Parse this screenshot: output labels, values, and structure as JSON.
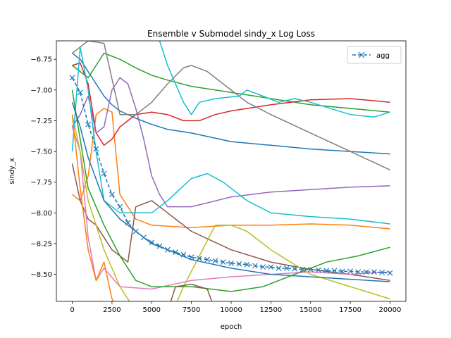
{
  "chart_data": {
    "type": "line",
    "title": "Ensemble v Submodel sindy_x Log Loss",
    "xlabel": "epoch",
    "ylabel": "sindy_x",
    "xlim": [
      -1000,
      21000
    ],
    "ylim": [
      -8.72,
      -6.6
    ],
    "xticks": [
      0,
      2500,
      5000,
      7500,
      10000,
      12500,
      15000,
      17500,
      20000
    ],
    "yticks": [
      -8.5,
      -8.25,
      -8.0,
      -7.75,
      -7.5,
      -7.25,
      -7.0,
      -6.75
    ],
    "grid": false,
    "legend": {
      "placement": "top-right",
      "entries": [
        "agg"
      ]
    },
    "aggregate": {
      "name": "agg",
      "color": "#1f77b4",
      "marker": "x",
      "linestyle": "dashed",
      "points": [
        [
          0,
          -6.9
        ],
        [
          500,
          -7.02
        ],
        [
          1000,
          -7.28
        ],
        [
          1500,
          -7.48
        ],
        [
          2000,
          -7.68
        ],
        [
          2500,
          -7.85
        ],
        [
          3000,
          -7.95
        ],
        [
          3500,
          -8.08
        ],
        [
          4000,
          -8.15
        ],
        [
          4500,
          -8.2
        ],
        [
          5000,
          -8.24
        ],
        [
          5500,
          -8.27
        ],
        [
          6000,
          -8.3
        ],
        [
          6500,
          -8.32
        ],
        [
          7000,
          -8.34
        ],
        [
          7500,
          -8.36
        ],
        [
          8000,
          -8.37
        ],
        [
          8500,
          -8.38
        ],
        [
          9000,
          -8.39
        ],
        [
          9500,
          -8.4
        ],
        [
          10000,
          -8.41
        ],
        [
          10500,
          -8.415
        ],
        [
          11000,
          -8.42
        ],
        [
          11500,
          -8.43
        ],
        [
          12000,
          -8.44
        ],
        [
          12500,
          -8.44
        ],
        [
          13000,
          -8.45
        ],
        [
          13500,
          -8.45
        ],
        [
          14000,
          -8.455
        ],
        [
          14500,
          -8.46
        ],
        [
          15000,
          -8.46
        ],
        [
          15500,
          -8.465
        ],
        [
          16000,
          -8.47
        ],
        [
          16500,
          -8.47
        ],
        [
          17000,
          -8.475
        ],
        [
          17500,
          -8.475
        ],
        [
          18000,
          -8.48
        ],
        [
          18500,
          -8.48
        ],
        [
          19000,
          -8.48
        ],
        [
          19500,
          -8.485
        ],
        [
          20000,
          -8.49
        ]
      ]
    },
    "submodels": [
      {
        "color": "#1f77b4",
        "points": [
          [
            0,
            -6.7
          ],
          [
            500,
            -6.75
          ],
          [
            1000,
            -6.85
          ],
          [
            1500,
            -6.95
          ],
          [
            2000,
            -7.05
          ],
          [
            2500,
            -7.12
          ],
          [
            3000,
            -7.17
          ],
          [
            4000,
            -7.23
          ],
          [
            5000,
            -7.28
          ],
          [
            6000,
            -7.32
          ],
          [
            7500,
            -7.35
          ],
          [
            10000,
            -7.42
          ],
          [
            12500,
            -7.45
          ],
          [
            15000,
            -7.48
          ],
          [
            17500,
            -7.5
          ],
          [
            20000,
            -7.52
          ]
        ]
      },
      {
        "color": "#ff7f0e",
        "points": [
          [
            0,
            -7.85
          ],
          [
            500,
            -7.9
          ],
          [
            1000,
            -7.7
          ],
          [
            1500,
            -7.2
          ],
          [
            2000,
            -7.15
          ],
          [
            2500,
            -7.18
          ],
          [
            3000,
            -7.85
          ],
          [
            4000,
            -8.05
          ],
          [
            5000,
            -8.1
          ],
          [
            7500,
            -8.12
          ],
          [
            10000,
            -8.1
          ],
          [
            12500,
            -8.1
          ],
          [
            15000,
            -8.09
          ],
          [
            17500,
            -8.1
          ],
          [
            20000,
            -8.13
          ]
        ]
      },
      {
        "color": "#2ca02c",
        "points": [
          [
            0,
            -6.8
          ],
          [
            500,
            -6.85
          ],
          [
            1000,
            -6.9
          ],
          [
            2000,
            -6.7
          ],
          [
            3000,
            -6.75
          ],
          [
            4000,
            -6.82
          ],
          [
            5000,
            -6.88
          ],
          [
            6000,
            -6.92
          ],
          [
            7500,
            -6.97
          ],
          [
            10000,
            -7.02
          ],
          [
            12500,
            -7.07
          ],
          [
            15000,
            -7.12
          ],
          [
            17500,
            -7.15
          ],
          [
            20000,
            -7.18
          ]
        ]
      },
      {
        "color": "#d62728",
        "points": [
          [
            0,
            -6.8
          ],
          [
            500,
            -6.78
          ],
          [
            1000,
            -6.95
          ],
          [
            1500,
            -7.35
          ],
          [
            2000,
            -7.45
          ],
          [
            2500,
            -7.4
          ],
          [
            3000,
            -7.3
          ],
          [
            3500,
            -7.25
          ],
          [
            4000,
            -7.2
          ],
          [
            5000,
            -7.18
          ],
          [
            6000,
            -7.2
          ],
          [
            7000,
            -7.25
          ],
          [
            8000,
            -7.25
          ],
          [
            9000,
            -7.2
          ],
          [
            10000,
            -7.17
          ],
          [
            12500,
            -7.12
          ],
          [
            15000,
            -7.08
          ],
          [
            17500,
            -7.07
          ],
          [
            20000,
            -7.1
          ]
        ]
      },
      {
        "color": "#9467bd",
        "points": [
          [
            0,
            -7.3
          ],
          [
            500,
            -7.2
          ],
          [
            1000,
            -7.05
          ],
          [
            1500,
            -7.35
          ],
          [
            2000,
            -7.3
          ],
          [
            2500,
            -7.0
          ],
          [
            3000,
            -6.9
          ],
          [
            3500,
            -6.95
          ],
          [
            4000,
            -7.15
          ],
          [
            4500,
            -7.4
          ],
          [
            5000,
            -7.7
          ],
          [
            5500,
            -7.85
          ],
          [
            6000,
            -7.95
          ],
          [
            7500,
            -7.95
          ],
          [
            10000,
            -7.87
          ],
          [
            12500,
            -7.83
          ],
          [
            15000,
            -7.81
          ],
          [
            17500,
            -7.79
          ],
          [
            20000,
            -7.78
          ]
        ]
      },
      {
        "color": "#8c564b",
        "points": [
          [
            0,
            -7.6
          ],
          [
            500,
            -7.9
          ],
          [
            1000,
            -8.05
          ],
          [
            1500,
            -8.1
          ],
          [
            2000,
            -8.2
          ],
          [
            2500,
            -8.3
          ],
          [
            3000,
            -8.35
          ],
          [
            3500,
            -8.4
          ],
          [
            4000,
            -7.95
          ],
          [
            5000,
            -7.9
          ],
          [
            6000,
            -8.0
          ],
          [
            7500,
            -8.15
          ],
          [
            10000,
            -8.3
          ],
          [
            12500,
            -8.4
          ],
          [
            15000,
            -8.46
          ],
          [
            17500,
            -8.5
          ],
          [
            20000,
            -8.55
          ]
        ]
      },
      {
        "color": "#e377c2",
        "points": [
          [
            0,
            -7.3
          ],
          [
            500,
            -7.5
          ],
          [
            1000,
            -8.2
          ],
          [
            1500,
            -8.55
          ],
          [
            2000,
            -8.45
          ],
          [
            3000,
            -8.6
          ],
          [
            5000,
            -8.62
          ],
          [
            7500,
            -8.55
          ],
          [
            10000,
            -8.52
          ],
          [
            12500,
            -8.5
          ],
          [
            15000,
            -8.48
          ],
          [
            17500,
            -8.5
          ],
          [
            20000,
            -8.48
          ]
        ]
      },
      {
        "color": "#7f7f7f",
        "points": [
          [
            0,
            -6.7
          ],
          [
            1000,
            -6.6
          ],
          [
            2000,
            -6.62
          ],
          [
            3000,
            -7.2
          ],
          [
            4000,
            -7.2
          ],
          [
            5000,
            -7.1
          ],
          [
            6000,
            -6.95
          ],
          [
            7000,
            -6.82
          ],
          [
            7500,
            -6.8
          ],
          [
            8500,
            -6.85
          ],
          [
            9500,
            -6.95
          ],
          [
            11000,
            -7.1
          ],
          [
            12500,
            -7.2
          ],
          [
            15000,
            -7.35
          ],
          [
            17500,
            -7.5
          ],
          [
            20000,
            -7.65
          ]
        ]
      },
      {
        "color": "#bcbd22",
        "points": [
          [
            0,
            -7.2
          ],
          [
            500,
            -7.5
          ],
          [
            1000,
            -7.9
          ],
          [
            2000,
            -8.3
          ],
          [
            3000,
            -8.6
          ],
          [
            4000,
            -8.8
          ],
          [
            6000,
            -8.9
          ],
          [
            7000,
            -8.6
          ],
          [
            8000,
            -8.35
          ],
          [
            9000,
            -8.1
          ],
          [
            10000,
            -8.1
          ],
          [
            11000,
            -8.15
          ],
          [
            12500,
            -8.3
          ],
          [
            15000,
            -8.5
          ],
          [
            17500,
            -8.6
          ],
          [
            20000,
            -8.7
          ]
        ]
      },
      {
        "color": "#17becf",
        "points": [
          [
            0,
            -7.5
          ],
          [
            500,
            -6.65
          ],
          [
            1000,
            -7.0
          ],
          [
            1500,
            -7.5
          ],
          [
            2000,
            -7.9
          ],
          [
            3000,
            -8.0
          ],
          [
            4000,
            -8.0
          ],
          [
            5000,
            -8.0
          ],
          [
            6000,
            -7.9
          ],
          [
            7500,
            -7.72
          ],
          [
            8500,
            -7.68
          ],
          [
            9500,
            -7.75
          ],
          [
            11000,
            -7.9
          ],
          [
            12500,
            -8.0
          ],
          [
            15000,
            -8.03
          ],
          [
            17500,
            -8.05
          ],
          [
            20000,
            -8.09
          ]
        ]
      },
      {
        "color": "#17becf",
        "points": [
          [
            5500,
            -6.6
          ],
          [
            6000,
            -6.8
          ],
          [
            6500,
            -6.95
          ],
          [
            7000,
            -7.1
          ],
          [
            7500,
            -7.2
          ],
          [
            8000,
            -7.1
          ],
          [
            9000,
            -7.07
          ],
          [
            10500,
            -7.05
          ],
          [
            11000,
            -7.0
          ],
          [
            12000,
            -7.05
          ],
          [
            13000,
            -7.1
          ],
          [
            14000,
            -7.07
          ],
          [
            15000,
            -7.1
          ],
          [
            17500,
            -7.2
          ],
          [
            19000,
            -7.22
          ],
          [
            20000,
            -7.18
          ]
        ]
      },
      {
        "color": "#2ca02c",
        "points": [
          [
            0,
            -7.0
          ],
          [
            500,
            -7.4
          ],
          [
            1000,
            -7.8
          ],
          [
            2000,
            -8.1
          ],
          [
            3000,
            -8.35
          ],
          [
            4000,
            -8.55
          ],
          [
            5000,
            -8.6
          ],
          [
            7500,
            -8.6
          ],
          [
            10000,
            -8.64
          ],
          [
            12000,
            -8.6
          ],
          [
            14000,
            -8.5
          ],
          [
            16000,
            -8.4
          ],
          [
            18000,
            -8.35
          ],
          [
            20000,
            -8.28
          ]
        ]
      },
      {
        "color": "#1f77b4",
        "points": [
          [
            0,
            -7.1
          ],
          [
            500,
            -7.3
          ],
          [
            1000,
            -7.55
          ],
          [
            2000,
            -7.9
          ],
          [
            3000,
            -8.05
          ],
          [
            4000,
            -8.15
          ],
          [
            5000,
            -8.25
          ],
          [
            6000,
            -8.3
          ],
          [
            7500,
            -8.38
          ],
          [
            10000,
            -8.45
          ],
          [
            12500,
            -8.5
          ],
          [
            15000,
            -8.52
          ],
          [
            17500,
            -8.54
          ],
          [
            20000,
            -8.56
          ]
        ]
      },
      {
        "color": "#ff7f0e",
        "points": [
          [
            0,
            -7.2
          ],
          [
            500,
            -7.8
          ],
          [
            1000,
            -8.3
          ],
          [
            1500,
            -8.55
          ],
          [
            2000,
            -8.4
          ],
          [
            2500,
            -8.7
          ],
          [
            3000,
            -8.8
          ]
        ]
      },
      {
        "color": "#8c564b",
        "points": [
          [
            6000,
            -8.8
          ],
          [
            6500,
            -8.6
          ],
          [
            7500,
            -8.58
          ],
          [
            8500,
            -8.62
          ],
          [
            9000,
            -8.8
          ]
        ]
      }
    ]
  }
}
